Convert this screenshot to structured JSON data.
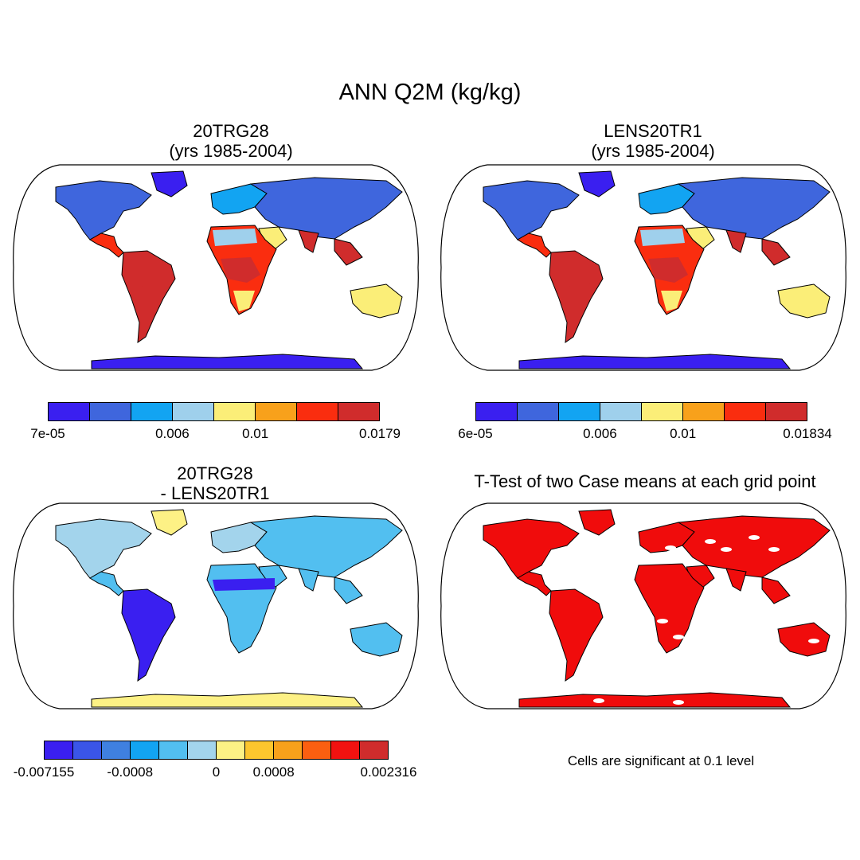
{
  "figure": {
    "title": "ANN Q2M (kg/kg)"
  },
  "panels": [
    {
      "id": "case1",
      "title_line1": "20TRG28",
      "title_line2": "(yrs 1985-2004)",
      "style": "mean"
    },
    {
      "id": "case2",
      "title_line1": "LENS20TR1",
      "title_line2": "(yrs 1985-2004)",
      "style": "mean"
    },
    {
      "id": "diff",
      "title_line1": "20TRG28",
      "title_line2": "- LENS20TR1",
      "style": "diff"
    },
    {
      "id": "ttest",
      "title_line1": "T-Test of two Case means at each grid point",
      "title_line2": "",
      "style": "ttest",
      "note": "Cells are significant at 0.1 level"
    }
  ],
  "colorbars": [
    {
      "id": "cb1",
      "colors": [
        "#3a1ff0",
        "#3f66dd",
        "#12a4f2",
        "#9fd0ec",
        "#fbee78",
        "#f8a11b",
        "#fa2d0f",
        "#d02c2c"
      ],
      "labels": [
        "7e-05",
        "0.006",
        "0.01",
        "0.0179"
      ],
      "label_edges": [
        0,
        3,
        5,
        8
      ]
    },
    {
      "id": "cb2",
      "colors": [
        "#3a1ff0",
        "#3f66dd",
        "#12a4f2",
        "#9fd0ec",
        "#fbee78",
        "#f8a11b",
        "#fa2d0f",
        "#d02c2c"
      ],
      "labels": [
        "6e-05",
        "0.006",
        "0.01",
        "0.01834"
      ],
      "label_edges": [
        0,
        3,
        5,
        8
      ]
    },
    {
      "id": "cb3",
      "colors": [
        "#3a1ff0",
        "#3a55e8",
        "#3f80e0",
        "#12a4f2",
        "#52bff0",
        "#a3d4ec",
        "#fdf185",
        "#fdc62e",
        "#f8a11b",
        "#fb5f10",
        "#f21210",
        "#d02c2c"
      ],
      "labels": [
        "-0.007155",
        "-0.0008",
        "0",
        "0.0008",
        "0.002316"
      ],
      "label_edges": [
        0,
        3,
        6,
        8,
        12
      ]
    }
  ],
  "palette": {
    "mean": {
      "ocean": "#ffffff",
      "polar": "#3a1ff0",
      "high_lat": "#3f66dd",
      "mid_lat": "#12a4f2",
      "temperate": "#9fd0ec",
      "sub": "#fbee78",
      "warm": "#f8a11b",
      "tropic": "#fa2d0f",
      "humid": "#d02c2c"
    },
    "diff": {
      "ocean": "#ffffff",
      "land": "#52bff0",
      "dry": "#3a1ff0",
      "neutral": "#fdf185",
      "light": "#a3d4ec"
    },
    "ttest": {
      "ocean": "#ffffff",
      "land": "#f00c0c"
    }
  }
}
